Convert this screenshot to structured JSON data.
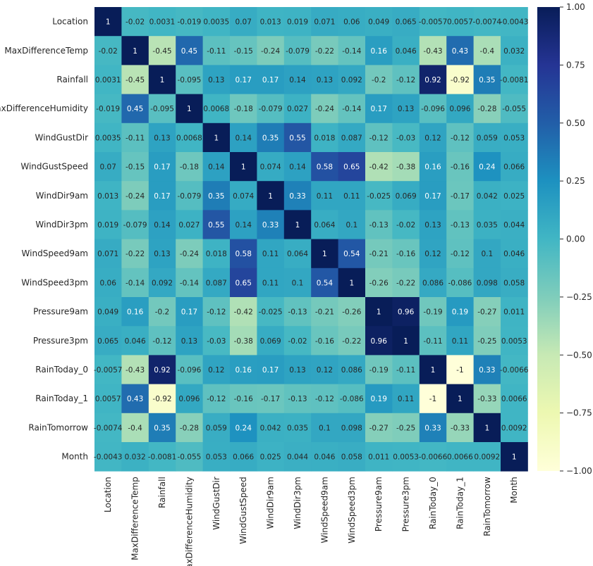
{
  "chart_data": {
    "type": "heatmap",
    "title": "",
    "rows": [
      "Location",
      "MaxDifferenceTemp",
      "Rainfall",
      "MaxDifferenceHumidity",
      "WindGustDir",
      "WindGustSpeed",
      "WindDir9am",
      "WindDir3pm",
      "WindSpeed9am",
      "WindSpeed3pm",
      "Pressure9am",
      "Pressure3pm",
      "RainToday_0",
      "RainToday_1",
      "RainTomorrow",
      "Month"
    ],
    "columns": [
      "Location",
      "MaxDifferenceTemp",
      "Rainfall",
      "MaxDifferenceHumidity",
      "WindGustDir",
      "WindGustSpeed",
      "WindDir9am",
      "WindDir3pm",
      "WindSpeed9am",
      "WindSpeed3pm",
      "Pressure9am",
      "Pressure3pm",
      "RainToday_0",
      "RainToday_1",
      "RainTomorrow",
      "Month"
    ],
    "values": [
      [
        1,
        -0.02,
        0.0031,
        -0.019,
        0.0035,
        0.07,
        0.013,
        0.019,
        0.071,
        0.06,
        0.049,
        0.065,
        -0.0057,
        0.0057,
        -0.0074,
        -0.0043
      ],
      [
        -0.02,
        1,
        -0.45,
        0.45,
        -0.11,
        -0.15,
        -0.24,
        -0.079,
        -0.22,
        -0.14,
        0.16,
        0.046,
        -0.43,
        0.43,
        -0.4,
        0.032
      ],
      [
        0.0031,
        -0.45,
        1,
        -0.095,
        0.13,
        0.17,
        0.17,
        0.14,
        0.13,
        0.092,
        -0.2,
        -0.12,
        0.92,
        -0.92,
        0.35,
        -0.0081
      ],
      [
        -0.019,
        0.45,
        -0.095,
        1,
        0.0068,
        -0.18,
        -0.079,
        0.027,
        -0.24,
        -0.14,
        0.17,
        0.13,
        -0.096,
        0.096,
        -0.28,
        -0.055
      ],
      [
        0.0035,
        -0.11,
        0.13,
        0.0068,
        1,
        0.14,
        0.35,
        0.55,
        0.018,
        0.087,
        -0.12,
        -0.03,
        0.12,
        -0.12,
        0.059,
        0.053
      ],
      [
        0.07,
        -0.15,
        0.17,
        -0.18,
        0.14,
        1,
        0.074,
        0.14,
        0.58,
        0.65,
        -0.42,
        -0.38,
        0.16,
        -0.16,
        0.24,
        0.066
      ],
      [
        0.013,
        -0.24,
        0.17,
        -0.079,
        0.35,
        0.074,
        1,
        0.33,
        0.11,
        0.11,
        -0.025,
        0.069,
        0.17,
        -0.17,
        0.042,
        0.025
      ],
      [
        0.019,
        -0.079,
        0.14,
        0.027,
        0.55,
        0.14,
        0.33,
        1,
        0.064,
        0.1,
        -0.13,
        -0.02,
        0.13,
        -0.13,
        0.035,
        0.044
      ],
      [
        0.071,
        -0.22,
        0.13,
        -0.24,
        0.018,
        0.58,
        0.11,
        0.064,
        1,
        0.54,
        -0.21,
        -0.16,
        0.12,
        -0.12,
        0.1,
        0.046
      ],
      [
        0.06,
        -0.14,
        0.092,
        -0.14,
        0.087,
        0.65,
        0.11,
        0.1,
        0.54,
        1,
        -0.26,
        -0.22,
        0.086,
        -0.086,
        0.098,
        0.058
      ],
      [
        0.049,
        0.16,
        -0.2,
        0.17,
        -0.12,
        -0.42,
        -0.025,
        -0.13,
        -0.21,
        -0.26,
        1,
        0.96,
        -0.19,
        0.19,
        -0.27,
        0.011
      ],
      [
        0.065,
        0.046,
        -0.12,
        0.13,
        -0.03,
        -0.38,
        0.069,
        -0.02,
        -0.16,
        -0.22,
        0.96,
        1,
        -0.11,
        0.11,
        -0.25,
        0.0053
      ],
      [
        -0.0057,
        -0.43,
        0.92,
        -0.096,
        0.12,
        0.16,
        0.17,
        0.13,
        0.12,
        0.086,
        -0.19,
        -0.11,
        1,
        -1,
        0.33,
        -0.0066
      ],
      [
        0.0057,
        0.43,
        -0.92,
        0.096,
        -0.12,
        -0.16,
        -0.17,
        -0.13,
        -0.12,
        -0.086,
        0.19,
        0.11,
        -1,
        1,
        -0.33,
        0.0066
      ],
      [
        -0.0074,
        -0.4,
        0.35,
        -0.28,
        0.059,
        0.24,
        0.042,
        0.035,
        0.1,
        0.098,
        -0.27,
        -0.25,
        0.33,
        -0.33,
        1,
        0.0092
      ],
      [
        -0.0043,
        0.032,
        -0.0081,
        -0.055,
        0.053,
        0.066,
        0.025,
        0.044,
        0.046,
        0.058,
        0.011,
        0.0053,
        -0.0066,
        0.0066,
        0.0092,
        1
      ]
    ],
    "colorbar": {
      "range": [
        -1,
        1
      ],
      "ticks": [
        1.0,
        0.75,
        0.5,
        0.25,
        0.0,
        -0.25,
        -0.5,
        -0.75,
        -1.0
      ],
      "tick_labels": [
        "1.00",
        "0.75",
        "0.50",
        "0.25",
        "0.00",
        "−0.25",
        "−0.50",
        "−0.75",
        "−1.00"
      ],
      "colormap": "YlGnBu",
      "colormap_stops": [
        "#ffffd9",
        "#edf8b1",
        "#c7e9b4",
        "#7fcdbb",
        "#41b6c4",
        "#1d91c0",
        "#225ea8",
        "#253494",
        "#081d58"
      ]
    },
    "annotated": true,
    "grid": false
  }
}
